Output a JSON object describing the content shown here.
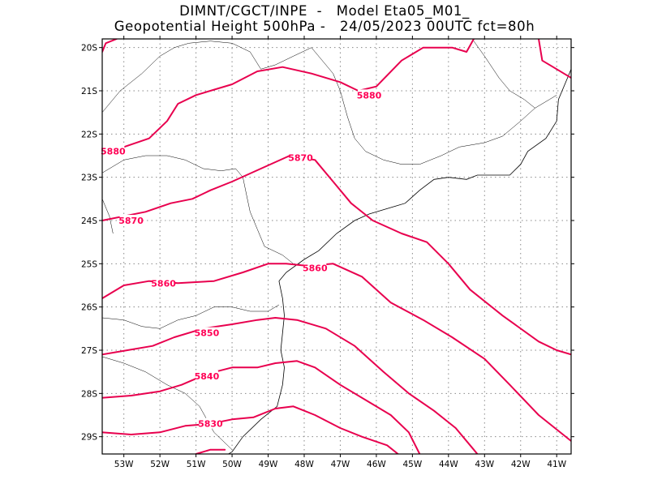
{
  "title": {
    "line1": "DIMNT/CGCT/INPE  -   Model Eta05_M01_",
    "line2": "Geopotential Height 500hPa -   24/05/2023 00UTC fct=80h"
  },
  "axes": {
    "lon_ticks": [
      "53W",
      "52W",
      "51W",
      "50W",
      "49W",
      "48W",
      "47W",
      "46W",
      "45W",
      "44W",
      "43W",
      "42W",
      "41W"
    ],
    "lat_ticks": [
      "20S",
      "21S",
      "22S",
      "23S",
      "24S",
      "25S",
      "26S",
      "27S",
      "28S",
      "29S"
    ]
  },
  "colors": {
    "contour": "#e8004e",
    "contour_label": "#ff0055",
    "coast": "#000000",
    "grid": "#888888"
  },
  "chart_data": {
    "type": "contour",
    "variable": "Geopotential Height 500hPa",
    "lon_range": [
      -53.6,
      -40.6
    ],
    "lat_range": [
      -29.4,
      -19.8
    ],
    "grid": true,
    "contours": [
      {
        "value": 5880,
        "label": "5880",
        "points": [
          [
            -53.6,
            -22.4
          ],
          [
            -53.0,
            -22.3
          ],
          [
            -52.3,
            -22.1
          ],
          [
            -51.8,
            -21.7
          ],
          [
            -51.5,
            -21.3
          ],
          [
            -51.0,
            -21.1
          ],
          [
            -50.0,
            -20.85
          ],
          [
            -49.3,
            -20.55
          ],
          [
            -48.6,
            -20.45
          ],
          [
            -47.8,
            -20.6
          ],
          [
            -47.0,
            -20.8
          ],
          [
            -46.5,
            -21.0
          ],
          [
            -46.0,
            -20.9
          ],
          [
            -45.3,
            -20.3
          ],
          [
            -44.7,
            -20.0
          ],
          [
            -43.9,
            -20.0
          ],
          [
            -43.5,
            -20.1
          ],
          [
            -43.3,
            -19.8
          ]
        ]
      },
      {
        "value": 5880,
        "label": "",
        "points": [
          [
            -53.6,
            -20.1
          ],
          [
            -53.5,
            -19.9
          ],
          [
            -53.2,
            -19.8
          ]
        ]
      },
      {
        "value": 5880,
        "label": "",
        "points": [
          [
            -41.5,
            -19.8
          ],
          [
            -41.4,
            -20.3
          ],
          [
            -41.0,
            -20.5
          ],
          [
            -40.8,
            -20.6
          ],
          [
            -40.6,
            -20.7
          ]
        ]
      },
      {
        "value": 5870,
        "label": "5870",
        "points": [
          [
            -53.6,
            -24.0
          ],
          [
            -53.0,
            -23.9
          ],
          [
            -52.4,
            -23.8
          ],
          [
            -51.7,
            -23.6
          ],
          [
            -51.1,
            -23.5
          ],
          [
            -50.6,
            -23.3
          ],
          [
            -50.0,
            -23.1
          ],
          [
            -49.2,
            -22.8
          ],
          [
            -48.4,
            -22.5
          ],
          [
            -47.7,
            -22.6
          ],
          [
            -47.2,
            -23.1
          ],
          [
            -46.7,
            -23.6
          ],
          [
            -46.1,
            -24.0
          ],
          [
            -45.3,
            -24.3
          ],
          [
            -44.6,
            -24.5
          ],
          [
            -44.0,
            -25.0
          ],
          [
            -43.4,
            -25.6
          ],
          [
            -42.5,
            -26.2
          ],
          [
            -41.5,
            -26.8
          ],
          [
            -41.0,
            -27.0
          ],
          [
            -40.6,
            -27.1
          ]
        ]
      },
      {
        "value": 5860,
        "label": "5860",
        "points": [
          [
            -53.6,
            -25.8
          ],
          [
            -53.0,
            -25.5
          ],
          [
            -52.3,
            -25.4
          ],
          [
            -51.5,
            -25.45
          ],
          [
            -50.5,
            -25.4
          ],
          [
            -49.7,
            -25.2
          ],
          [
            -49.0,
            -25.0
          ],
          [
            -48.5,
            -25.0
          ],
          [
            -47.9,
            -25.05
          ],
          [
            -47.2,
            -25.0
          ],
          [
            -46.4,
            -25.3
          ],
          [
            -45.6,
            -25.9
          ],
          [
            -44.7,
            -26.3
          ],
          [
            -43.9,
            -26.7
          ],
          [
            -43.0,
            -27.2
          ],
          [
            -42.3,
            -27.8
          ],
          [
            -41.5,
            -28.5
          ],
          [
            -40.6,
            -29.1
          ]
        ]
      },
      {
        "value": 5850,
        "label": "5850",
        "points": [
          [
            -53.6,
            -27.1
          ],
          [
            -52.9,
            -27.0
          ],
          [
            -52.2,
            -26.9
          ],
          [
            -51.6,
            -26.7
          ],
          [
            -50.8,
            -26.5
          ],
          [
            -50.0,
            -26.4
          ],
          [
            -49.3,
            -26.3
          ],
          [
            -48.8,
            -26.25
          ],
          [
            -48.2,
            -26.3
          ],
          [
            -47.4,
            -26.5
          ],
          [
            -46.6,
            -26.9
          ],
          [
            -45.8,
            -27.5
          ],
          [
            -45.1,
            -28.0
          ],
          [
            -44.4,
            -28.4
          ],
          [
            -43.8,
            -28.8
          ],
          [
            -43.3,
            -29.3
          ],
          [
            -43.2,
            -29.4
          ]
        ]
      },
      {
        "value": 5840,
        "label": "5840",
        "points": [
          [
            -53.6,
            -28.1
          ],
          [
            -52.8,
            -28.05
          ],
          [
            -52.0,
            -27.95
          ],
          [
            -51.4,
            -27.8
          ],
          [
            -50.7,
            -27.55
          ],
          [
            -50.0,
            -27.4
          ],
          [
            -49.3,
            -27.4
          ],
          [
            -48.8,
            -27.3
          ],
          [
            -48.2,
            -27.25
          ],
          [
            -47.7,
            -27.4
          ],
          [
            -47.0,
            -27.8
          ],
          [
            -46.2,
            -28.2
          ],
          [
            -45.6,
            -28.5
          ],
          [
            -45.1,
            -28.9
          ],
          [
            -44.8,
            -29.4
          ]
        ]
      },
      {
        "value": 5830,
        "label": "5830",
        "points": [
          [
            -53.6,
            -28.9
          ],
          [
            -52.8,
            -28.95
          ],
          [
            -52.0,
            -28.9
          ],
          [
            -51.3,
            -28.75
          ],
          [
            -50.6,
            -28.7
          ],
          [
            -50.0,
            -28.6
          ],
          [
            -49.4,
            -28.55
          ],
          [
            -48.8,
            -28.35
          ],
          [
            -48.3,
            -28.3
          ],
          [
            -47.7,
            -28.5
          ],
          [
            -47.0,
            -28.8
          ],
          [
            -46.4,
            -29.0
          ],
          [
            -45.7,
            -29.2
          ],
          [
            -45.4,
            -29.4
          ]
        ]
      },
      {
        "value": 5830,
        "label": "",
        "points": [
          [
            -51.0,
            -29.4
          ],
          [
            -50.6,
            -29.3
          ],
          [
            -50.2,
            -29.3
          ]
        ]
      }
    ],
    "labels": [
      {
        "text": "5880",
        "lon": -53.3,
        "lat": -22.4
      },
      {
        "text": "5880",
        "lon": -46.2,
        "lat": -21.1
      },
      {
        "text": "5870",
        "lon": -52.8,
        "lat": -24.0
      },
      {
        "text": "5870",
        "lon": -48.1,
        "lat": -22.55
      },
      {
        "text": "5860",
        "lon": -51.9,
        "lat": -25.45
      },
      {
        "text": "5860",
        "lon": -47.7,
        "lat": -25.1
      },
      {
        "text": "5850",
        "lon": -50.7,
        "lat": -26.6
      },
      {
        "text": "5840",
        "lon": -50.7,
        "lat": -27.6
      },
      {
        "text": "5830",
        "lon": -50.6,
        "lat": -28.7
      }
    ]
  },
  "coast": [
    [
      [
        -48.7,
        -25.4
      ],
      [
        -48.5,
        -25.2
      ],
      [
        -48.0,
        -24.9
      ],
      [
        -47.6,
        -24.7
      ],
      [
        -47.1,
        -24.3
      ],
      [
        -46.6,
        -24.0
      ],
      [
        -46.2,
        -23.85
      ],
      [
        -45.6,
        -23.7
      ],
      [
        -45.2,
        -23.6
      ],
      [
        -44.8,
        -23.3
      ],
      [
        -44.4,
        -23.05
      ],
      [
        -44.0,
        -23.0
      ],
      [
        -43.5,
        -23.05
      ],
      [
        -43.2,
        -22.95
      ],
      [
        -42.8,
        -22.95
      ],
      [
        -42.3,
        -22.95
      ],
      [
        -42.0,
        -22.7
      ],
      [
        -41.8,
        -22.4
      ],
      [
        -41.3,
        -22.1
      ],
      [
        -41.0,
        -21.7
      ],
      [
        -40.95,
        -21.2
      ],
      [
        -40.7,
        -20.7
      ],
      [
        -40.6,
        -20.5
      ]
    ],
    [
      [
        -48.7,
        -25.4
      ],
      [
        -48.6,
        -25.8
      ],
      [
        -48.55,
        -26.2
      ],
      [
        -48.6,
        -26.6
      ],
      [
        -48.65,
        -27.0
      ],
      [
        -48.55,
        -27.4
      ],
      [
        -48.6,
        -27.8
      ],
      [
        -48.75,
        -28.3
      ],
      [
        -49.2,
        -28.6
      ],
      [
        -49.7,
        -29.0
      ],
      [
        -50.0,
        -29.35
      ],
      [
        -50.1,
        -29.4
      ]
    ]
  ],
  "borders": [
    [
      [
        -53.6,
        -22.9
      ],
      [
        -53.0,
        -22.6
      ],
      [
        -52.4,
        -22.5
      ],
      [
        -51.8,
        -22.5
      ],
      [
        -51.3,
        -22.6
      ],
      [
        -50.8,
        -22.8
      ],
      [
        -50.3,
        -22.85
      ],
      [
        -49.9,
        -22.8
      ],
      [
        -49.7,
        -23.0
      ],
      [
        -49.6,
        -23.4
      ],
      [
        -49.5,
        -23.8
      ],
      [
        -49.3,
        -24.2
      ],
      [
        -49.1,
        -24.6
      ],
      [
        -48.6,
        -24.8
      ],
      [
        -48.3,
        -25.0
      ]
    ],
    [
      [
        -53.6,
        -23.5
      ],
      [
        -53.4,
        -23.9
      ],
      [
        -53.3,
        -24.3
      ]
    ],
    [
      [
        -53.6,
        -26.25
      ],
      [
        -53.0,
        -26.3
      ],
      [
        -52.5,
        -26.45
      ],
      [
        -52.0,
        -26.5
      ],
      [
        -51.5,
        -26.3
      ],
      [
        -51.0,
        -26.2
      ],
      [
        -50.5,
        -26.0
      ],
      [
        -50.0,
        -26.0
      ],
      [
        -49.5,
        -26.1
      ],
      [
        -49.0,
        -26.1
      ],
      [
        -48.7,
        -25.95
      ]
    ],
    [
      [
        -53.6,
        -27.15
      ],
      [
        -53.0,
        -27.3
      ],
      [
        -52.4,
        -27.5
      ],
      [
        -51.8,
        -27.8
      ],
      [
        -51.3,
        -28.0
      ],
      [
        -50.9,
        -28.3
      ],
      [
        -50.5,
        -28.9
      ],
      [
        -50.0,
        -29.3
      ]
    ],
    [
      [
        -49.2,
        -20.5
      ],
      [
        -48.8,
        -20.4
      ],
      [
        -48.3,
        -20.2
      ],
      [
        -47.8,
        -20.0
      ],
      [
        -47.4,
        -20.4
      ],
      [
        -47.2,
        -20.6
      ],
      [
        -47.0,
        -21.0
      ],
      [
        -46.8,
        -21.6
      ],
      [
        -46.6,
        -22.1
      ],
      [
        -46.3,
        -22.4
      ],
      [
        -45.8,
        -22.6
      ],
      [
        -45.3,
        -22.7
      ],
      [
        -44.8,
        -22.7
      ],
      [
        -44.5,
        -22.6
      ],
      [
        -44.2,
        -22.5
      ],
      [
        -43.7,
        -22.3
      ],
      [
        -43.0,
        -22.2
      ],
      [
        -42.5,
        -22.05
      ],
      [
        -42.0,
        -21.7
      ],
      [
        -41.6,
        -21.4
      ],
      [
        -41.2,
        -21.2
      ],
      [
        -41.0,
        -21.1
      ]
    ],
    [
      [
        -53.6,
        -21.5
      ],
      [
        -53.1,
        -21.0
      ],
      [
        -52.5,
        -20.6
      ],
      [
        -52.0,
        -20.2
      ],
      [
        -51.6,
        -20.0
      ],
      [
        -51.2,
        -19.9
      ],
      [
        -50.6,
        -19.85
      ],
      [
        -50.0,
        -19.9
      ],
      [
        -49.5,
        -20.1
      ],
      [
        -49.2,
        -20.5
      ]
    ],
    [
      [
        -43.3,
        -19.85
      ],
      [
        -43.0,
        -20.2
      ],
      [
        -42.6,
        -20.7
      ],
      [
        -42.3,
        -21.0
      ],
      [
        -41.9,
        -21.2
      ],
      [
        -41.6,
        -21.4
      ]
    ]
  ]
}
